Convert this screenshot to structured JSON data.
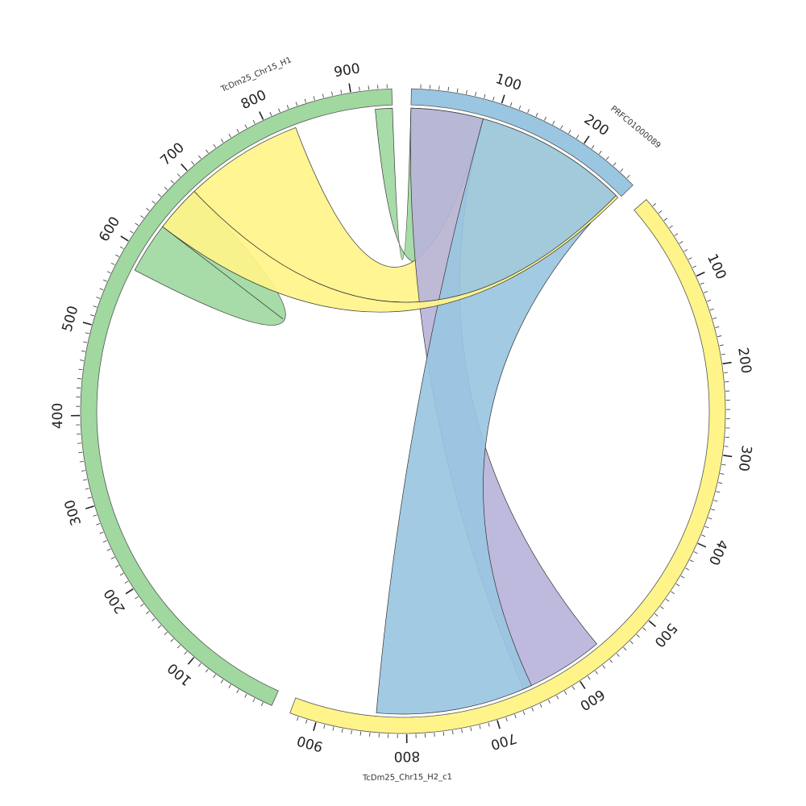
{
  "segments": [
    {
      "id": "prfc",
      "label": "PRFC01000089",
      "color": "#9ac6e1",
      "length": 270,
      "major_ticks": [
        100,
        200
      ],
      "tick_labels": [
        "100",
        "200"
      ]
    },
    {
      "id": "h2c1",
      "label": "TcDm25_Chr15_H2_c1",
      "color": "#fff48a",
      "length": 930,
      "major_ticks": [
        100,
        200,
        300,
        400,
        500,
        600,
        700,
        800,
        900
      ],
      "tick_labels": [
        "100",
        "200",
        "300",
        "400",
        "500",
        "600",
        "700",
        "800",
        "900"
      ]
    },
    {
      "id": "h1",
      "label": "TcDm25_Chr15_H1",
      "color": "#a0d8a0",
      "length": 945,
      "major_ticks": [
        100,
        200,
        300,
        400,
        500,
        600,
        700,
        800,
        900
      ],
      "tick_labels": [
        "100",
        "200",
        "300",
        "400",
        "500",
        "600",
        "700",
        "800",
        "900"
      ]
    }
  ],
  "links": [
    {
      "source": "prfc",
      "source_range": [
        0,
        85
      ],
      "target": "h1",
      "target_range": [
        925,
        945
      ],
      "color": "#a0d8a0"
    },
    {
      "source": "prfc",
      "source_range": [
        85,
        265
      ],
      "target": "h1",
      "target_range": [
        690,
        830
      ],
      "color": "#fff48a"
    },
    {
      "source": "prfc",
      "source_range": [
        0,
        85
      ],
      "target": "h2c1",
      "target_range": [
        560,
        660
      ],
      "color": "#b8b4da"
    },
    {
      "source": "prfc",
      "source_range": [
        85,
        265
      ],
      "target": "h2c1",
      "target_range": [
        650,
        835
      ],
      "color": "#9ac6e1"
    },
    {
      "source": "h1",
      "source_range": [
        575,
        635
      ],
      "target": "h1",
      "target_range": [
        635,
        690
      ],
      "color": "#a0d8a0"
    },
    {
      "source": "h1",
      "source_range": [
        635,
        690
      ],
      "target": "prfc",
      "target_range": [
        265,
        268
      ],
      "color": "#fff48a"
    }
  ]
}
